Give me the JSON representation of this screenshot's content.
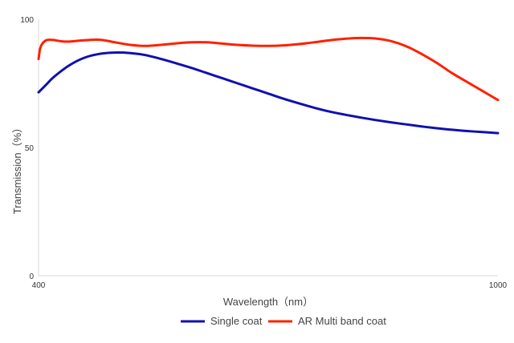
{
  "chart_data": {
    "type": "line",
    "title": "",
    "xlabel": "Wavelength（nm）",
    "ylabel": "Transmission（%）",
    "xlim": [
      400,
      1000
    ],
    "ylim": [
      0,
      100
    ],
    "xticks": [
      "400",
      "1000"
    ],
    "yticks": [
      "0",
      "50",
      "100"
    ],
    "grid": false,
    "legend_position": "bottom",
    "series": [
      {
        "name": "Single coat",
        "color": "#1010b0",
        "x": [
          400,
          410,
          420,
          440,
          460,
          480,
          500,
          520,
          540,
          560,
          580,
          600,
          620,
          640,
          660,
          680,
          700,
          720,
          740,
          760,
          780,
          800,
          820,
          840,
          860,
          880,
          900,
          920,
          940,
          960,
          980,
          1000
        ],
        "y": [
          71.5,
          74.5,
          77.5,
          82.0,
          85.0,
          86.5,
          87.0,
          86.8,
          86.0,
          84.5,
          82.8,
          81.0,
          79.0,
          77.0,
          75.0,
          73.0,
          71.0,
          69.0,
          67.2,
          65.5,
          64.0,
          62.8,
          61.7,
          60.7,
          59.8,
          59.0,
          58.2,
          57.5,
          56.9,
          56.4,
          56.0,
          55.6
        ]
      },
      {
        "name": "AR Multi band coat",
        "color": "#ff2000",
        "x": [
          400,
          402,
          405,
          410,
          415,
          420,
          430,
          440,
          460,
          480,
          500,
          520,
          540,
          560,
          580,
          600,
          620,
          640,
          660,
          680,
          700,
          720,
          740,
          760,
          780,
          800,
          820,
          840,
          860,
          880,
          900,
          920,
          940,
          960,
          980,
          1000
        ],
        "y": [
          84.5,
          88.5,
          90.5,
          91.8,
          92.0,
          91.9,
          91.4,
          91.3,
          91.8,
          92.0,
          91.0,
          90.0,
          89.6,
          90.0,
          90.6,
          91.0,
          91.0,
          90.5,
          90.0,
          89.7,
          89.6,
          89.8,
          90.3,
          91.0,
          91.8,
          92.4,
          92.7,
          92.5,
          91.5,
          89.5,
          86.5,
          83.0,
          79.0,
          75.5,
          72.0,
          68.5
        ]
      }
    ]
  }
}
